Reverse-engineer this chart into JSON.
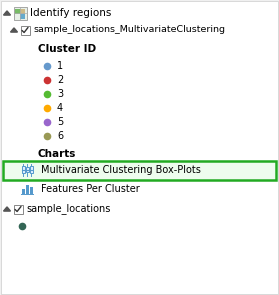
{
  "bg_color": "#f0f0f0",
  "panel_bg": "#ffffff",
  "title": "Identify regions",
  "title_fontsize": 7.5,
  "title_color": "#000000",
  "layer1_name": "sample_locations_MultivariateClustering",
  "layer2_name": "sample_locations",
  "text_fontsize": 7.0,
  "small_fontsize": 6.8,
  "clusters": [
    {
      "id": "1",
      "color": "#6699cc"
    },
    {
      "id": "2",
      "color": "#cc3333"
    },
    {
      "id": "3",
      "color": "#55bb33"
    },
    {
      "id": "4",
      "color": "#ffaa00"
    },
    {
      "id": "5",
      "color": "#9966cc"
    },
    {
      "id": "6",
      "color": "#999955"
    }
  ],
  "cluster_id_label": "Cluster ID",
  "charts_label": "Charts",
  "chart1_label": "Multivariate Clustering Box-Plots",
  "chart2_label": "Features Per Cluster",
  "highlight_color": "#22aa22",
  "highlight_bg": "#eefcee",
  "icon_color": "#5599cc",
  "layer2_dot_color": "#336655",
  "arrow_color": "#555555",
  "checkbox_border": "#888888",
  "map_icon_colors": [
    "#88bb77",
    "#5599bb",
    "#ddcc88"
  ],
  "bold_fontsize": 7.5
}
